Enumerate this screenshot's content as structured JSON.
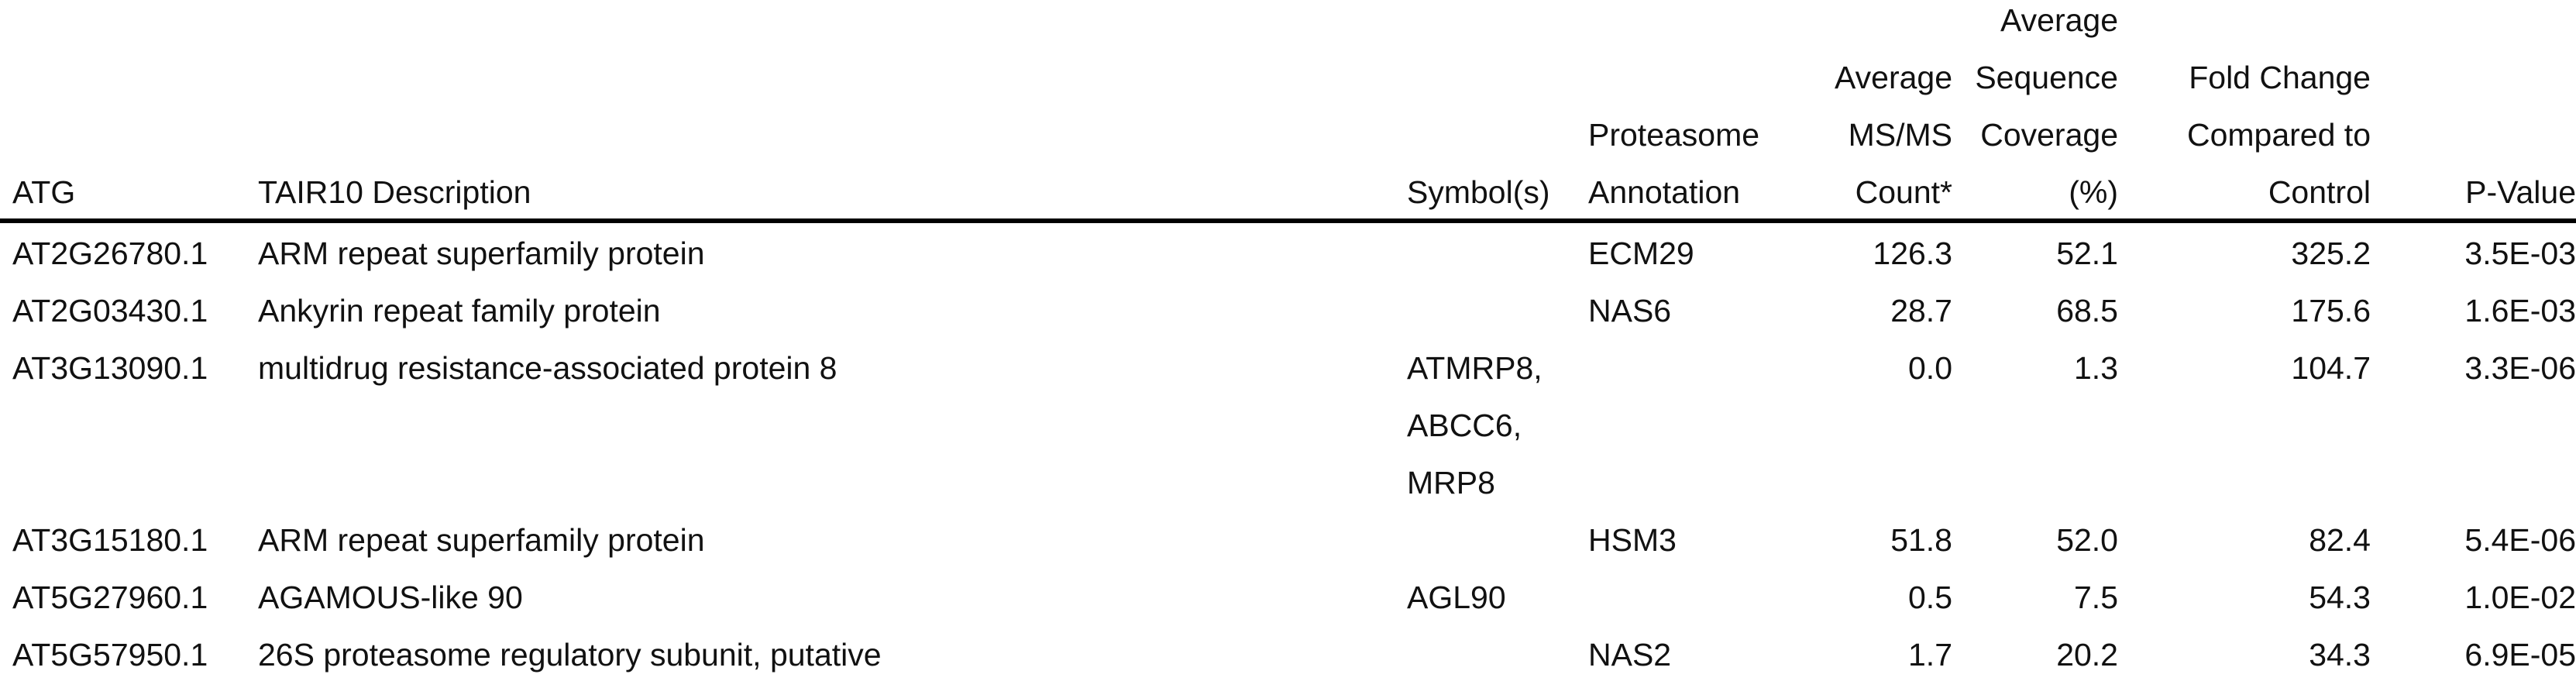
{
  "table": {
    "headers": {
      "atg": "ATG",
      "description": "TAIR10 Description",
      "symbols": "Symbol(s)",
      "annotation": [
        "Proteasome",
        "Annotation"
      ],
      "msms": [
        "Average",
        "MS/MS",
        "Count*"
      ],
      "coverage": [
        "Average",
        "Sequence",
        "Coverage",
        "(%)"
      ],
      "fold": [
        "Fold Change",
        "Compared to",
        "Control"
      ],
      "pvalue": "P-Value"
    },
    "rows": [
      {
        "atg": "AT2G26780.1",
        "description": "ARM repeat superfamily protein",
        "symbols": [],
        "annotation": "ECM29",
        "msms": "126.3",
        "coverage": "52.1",
        "fold": "325.2",
        "pvalue": "3.5E-03"
      },
      {
        "atg": "AT2G03430.1",
        "description": "Ankyrin repeat family protein",
        "symbols": [],
        "annotation": "NAS6",
        "msms": "28.7",
        "coverage": "68.5",
        "fold": "175.6",
        "pvalue": "1.6E-03"
      },
      {
        "atg": "AT3G13090.1",
        "description": "multidrug resistance-associated protein 8",
        "symbols": [
          "ATMRP8,",
          "ABCC6,",
          "MRP8"
        ],
        "annotation": "",
        "msms": "0.0",
        "coverage": "1.3",
        "fold": "104.7",
        "pvalue": "3.3E-06"
      },
      {
        "atg": "AT3G15180.1",
        "description": "ARM repeat superfamily protein",
        "symbols": [],
        "annotation": "HSM3",
        "msms": "51.8",
        "coverage": "52.0",
        "fold": "82.4",
        "pvalue": "5.4E-06"
      },
      {
        "atg": "AT5G27960.1",
        "description": "AGAMOUS-like 90",
        "symbols": [
          "AGL90"
        ],
        "annotation": "",
        "msms": "0.5",
        "coverage": "7.5",
        "fold": "54.3",
        "pvalue": "1.0E-02"
      },
      {
        "atg": "AT5G57950.1",
        "description": "26S proteasome regulatory subunit, putative",
        "symbols": [],
        "annotation": "NAS2",
        "msms": "1.7",
        "coverage": "20.2",
        "fold": "34.3",
        "pvalue": "6.9E-05"
      }
    ]
  }
}
